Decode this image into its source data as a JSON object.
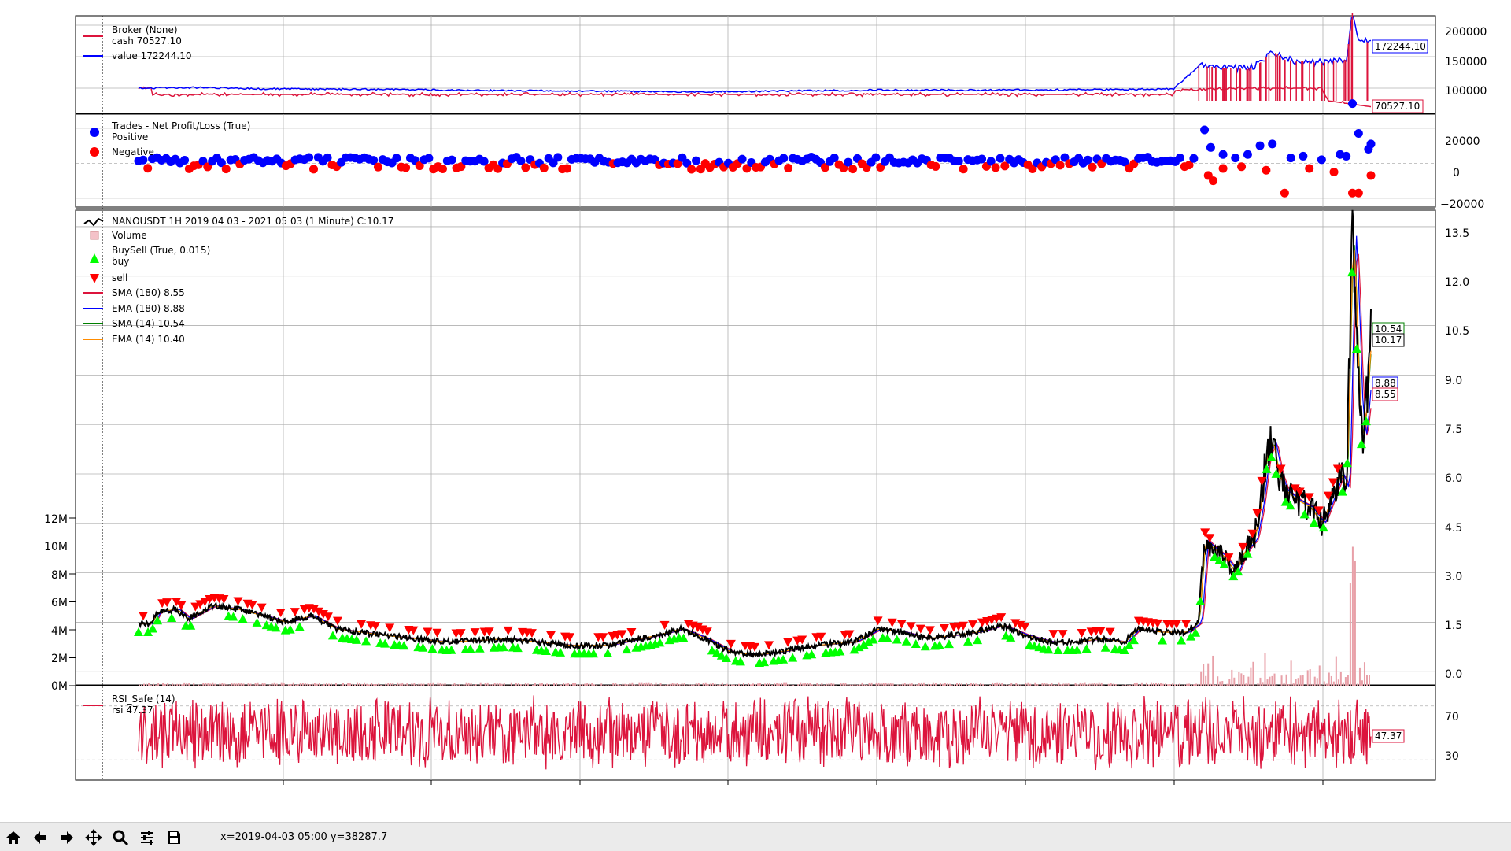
{
  "colors": {
    "cash": "#dc143c",
    "value": "#0000ff",
    "price": "#000000",
    "buy": "#00ff00",
    "sell": "#ff0000",
    "sma180": "#dc143c",
    "ema180": "#0000ff",
    "sma14": "#008000",
    "ema14": "#ff8c00",
    "volume": "#e8a0a8",
    "rsi": "#dc143c",
    "positive": "#0000ff",
    "negative": "#ff0000"
  },
  "chart_data": [
    {
      "type": "line",
      "legend": [
        "Broker (None)",
        "cash 70527.10",
        "value 172244.10"
      ],
      "y_ticks": [
        "200000",
        "150000",
        "100000"
      ],
      "ylim": [
        60000,
        215000
      ],
      "series": [
        {
          "name": "cash",
          "last": "70527.10"
        },
        {
          "name": "value",
          "last": "172244.10"
        }
      ],
      "keypoints_cash": [
        [
          0.0,
          100000
        ],
        [
          0.01,
          100000
        ],
        [
          0.011,
          90000
        ],
        [
          0.84,
          90000
        ],
        [
          0.841,
          96000
        ],
        [
          0.85,
          98000
        ],
        [
          0.86,
          96000
        ],
        [
          0.87,
          100000
        ],
        [
          0.88,
          98000
        ],
        [
          0.89,
          100000
        ],
        [
          0.9,
          100000
        ],
        [
          0.96,
          100000
        ],
        [
          0.965,
          80000
        ],
        [
          1.0,
          70527
        ]
      ],
      "keypoints_value": [
        [
          0.0,
          100000
        ],
        [
          0.05,
          101000
        ],
        [
          0.1,
          99000
        ],
        [
          0.2,
          98000
        ],
        [
          0.3,
          96000
        ],
        [
          0.4,
          95000
        ],
        [
          0.45,
          94000
        ],
        [
          0.55,
          96000
        ],
        [
          0.6,
          97000
        ],
        [
          0.7,
          97000
        ],
        [
          0.8,
          98000
        ],
        [
          0.84,
          99000
        ],
        [
          0.86,
          135000
        ],
        [
          0.9,
          130000
        ],
        [
          0.91,
          140000
        ],
        [
          0.92,
          160000
        ],
        [
          0.93,
          145000
        ],
        [
          0.96,
          140000
        ],
        [
          0.98,
          145000
        ],
        [
          0.985,
          220000
        ],
        [
          0.99,
          175000
        ],
        [
          1.0,
          172244
        ]
      ]
    },
    {
      "type": "scatter",
      "legend": [
        "Trades - Net Profit/Loss (True)",
        "Positive",
        "Negative"
      ],
      "y_ticks": [
        "20000",
        "0",
        "−20000"
      ],
      "ylim": [
        -25000,
        28000
      ],
      "positive_points": [
        [
          0.865,
          19000
        ],
        [
          0.87,
          9000
        ],
        [
          0.88,
          5000
        ],
        [
          0.89,
          3000
        ],
        [
          0.9,
          5000
        ],
        [
          0.91,
          10000
        ],
        [
          0.92,
          11000
        ],
        [
          0.935,
          3000
        ],
        [
          0.945,
          4000
        ],
        [
          0.96,
          2000
        ],
        [
          0.975,
          5000
        ],
        [
          0.98,
          4000
        ],
        [
          0.985,
          34000
        ],
        [
          0.99,
          17000
        ],
        [
          0.998,
          8000
        ],
        [
          1.0,
          11000
        ]
      ],
      "negative_points": [
        [
          0.868,
          -7000
        ],
        [
          0.872,
          -10000
        ],
        [
          0.88,
          -3000
        ],
        [
          0.895,
          -2000
        ],
        [
          0.915,
          -4000
        ],
        [
          0.93,
          -17000
        ],
        [
          0.95,
          -3000
        ],
        [
          0.97,
          -5000
        ],
        [
          0.985,
          -17000
        ],
        [
          0.99,
          -17000
        ],
        [
          1.0,
          -7000
        ]
      ]
    },
    {
      "type": "line",
      "legend": [
        "NANOUSDT 1H 2019 04 03 - 2021 05 03 (1 Minute) C:10.17",
        "Volume",
        "BuySell (True, 0.015)",
        "buy",
        "sell",
        "SMA (180) 8.55",
        "EMA (180) 8.88",
        "SMA (14) 10.54",
        "EMA (14) 10.40"
      ],
      "y_ticks": [
        "13.5",
        "12.0",
        "10.5",
        "9.0",
        "7.5",
        "6.0",
        "4.5",
        "3.0",
        "1.5",
        "0.0"
      ],
      "ylim": [
        -0.4,
        14.0
      ],
      "volume_ticks": [
        "12M",
        "10M",
        "8M",
        "6M",
        "4M",
        "2M",
        "0M"
      ],
      "volume_lim": [
        0,
        12000000
      ],
      "last_labels": {
        "sma14": "10.54",
        "close": "10.17",
        "ema180": "8.88",
        "sma180": "8.55"
      },
      "keypoints_close": [
        [
          0.0,
          1.45
        ],
        [
          0.01,
          1.45
        ],
        [
          0.015,
          1.8
        ],
        [
          0.03,
          1.9
        ],
        [
          0.04,
          1.6
        ],
        [
          0.06,
          2.0
        ],
        [
          0.08,
          1.9
        ],
        [
          0.1,
          1.7
        ],
        [
          0.12,
          1.5
        ],
        [
          0.14,
          1.7
        ],
        [
          0.16,
          1.3
        ],
        [
          0.18,
          1.2
        ],
        [
          0.2,
          1.1
        ],
        [
          0.25,
          0.9
        ],
        [
          0.3,
          1.0
        ],
        [
          0.35,
          0.8
        ],
        [
          0.38,
          0.8
        ],
        [
          0.42,
          1.1
        ],
        [
          0.44,
          1.3
        ],
        [
          0.46,
          1.0
        ],
        [
          0.48,
          0.6
        ],
        [
          0.5,
          0.5
        ],
        [
          0.52,
          0.6
        ],
        [
          0.55,
          0.8
        ],
        [
          0.58,
          0.9
        ],
        [
          0.6,
          1.3
        ],
        [
          0.62,
          1.2
        ],
        [
          0.64,
          1.0
        ],
        [
          0.66,
          1.1
        ],
        [
          0.68,
          1.2
        ],
        [
          0.7,
          1.4
        ],
        [
          0.72,
          1.1
        ],
        [
          0.74,
          0.9
        ],
        [
          0.76,
          0.9
        ],
        [
          0.78,
          1.0
        ],
        [
          0.8,
          0.9
        ],
        [
          0.81,
          1.3
        ],
        [
          0.83,
          1.2
        ],
        [
          0.85,
          1.2
        ],
        [
          0.86,
          1.5
        ],
        [
          0.865,
          4.0
        ],
        [
          0.87,
          3.8
        ],
        [
          0.88,
          3.5
        ],
        [
          0.89,
          3.0
        ],
        [
          0.895,
          3.5
        ],
        [
          0.9,
          3.8
        ],
        [
          0.905,
          4.0
        ],
        [
          0.91,
          5.0
        ],
        [
          0.915,
          6.5
        ],
        [
          0.92,
          7.0
        ],
        [
          0.925,
          6.0
        ],
        [
          0.93,
          5.5
        ],
        [
          0.94,
          5.2
        ],
        [
          0.95,
          5.0
        ],
        [
          0.96,
          4.5
        ],
        [
          0.97,
          5.5
        ],
        [
          0.975,
          6.0
        ],
        [
          0.98,
          5.5
        ],
        [
          0.985,
          13.5
        ],
        [
          0.988,
          11.0
        ],
        [
          0.99,
          8.5
        ],
        [
          0.993,
          7.0
        ],
        [
          0.996,
          8.0
        ],
        [
          1.0,
          10.17
        ]
      ]
    },
    {
      "type": "line",
      "legend": [
        "RSI_Safe (14)",
        "rsi 47.37"
      ],
      "y_ticks": [
        "70",
        "30"
      ],
      "ylim": [
        15,
        85
      ],
      "series": [
        {
          "name": "rsi",
          "last": "47.37"
        }
      ]
    }
  ],
  "toolbar": {
    "coords": "x=2019-04-03 05:00 y=38287.7",
    "icons": [
      "home-icon",
      "back-icon",
      "forward-icon",
      "pan-icon",
      "zoom-icon",
      "configure-icon",
      "save-icon"
    ]
  }
}
